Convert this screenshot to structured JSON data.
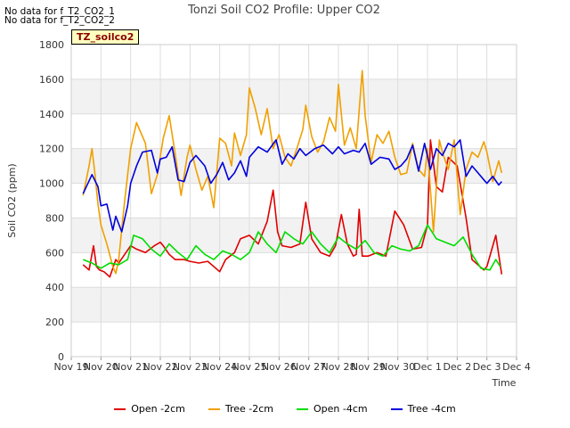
{
  "notes": [
    "No data for f_T2_CO2_1",
    "No data for f_T2_CO2_2"
  ],
  "station_tag": "TZ_soilco2",
  "chart_data": {
    "type": "line",
    "title": "Tonzi Soil CO2 Profile: Upper CO2",
    "xlabel": "Time",
    "ylabel": "Soil CO2 (ppm)",
    "ylim": [
      0,
      1800
    ],
    "xlim": [
      0,
      15
    ],
    "yticks": [
      0,
      200,
      400,
      600,
      800,
      1000,
      1200,
      1400,
      1600,
      1800
    ],
    "xticks": [
      0,
      1,
      2,
      3,
      4,
      5,
      6,
      7,
      8,
      9,
      10,
      11,
      12,
      13,
      14,
      15
    ],
    "xtick_labels": [
      "Nov 19",
      "Nov 20",
      "Nov 21",
      "Nov 22",
      "Nov 23",
      "Nov 24",
      "Nov 25",
      "Nov 26",
      "Nov 27",
      "Nov 28",
      "Nov 29",
      "Nov 30",
      "Dec 1",
      "Dec 2",
      "Dec 3",
      "Dec 4"
    ],
    "grid": true,
    "legend_position": "bottom",
    "series": [
      {
        "name": "Open -2cm",
        "color": "#e00000",
        "x": [
          0.4,
          0.6,
          0.75,
          0.85,
          0.95,
          1.1,
          1.3,
          1.5,
          1.6,
          1.8,
          2.0,
          2.2,
          2.5,
          2.8,
          3.0,
          3.1,
          3.3,
          3.5,
          3.8,
          4.0,
          4.3,
          4.6,
          5.0,
          5.2,
          5.5,
          5.7,
          6.0,
          6.3,
          6.6,
          6.8,
          6.95,
          7.1,
          7.4,
          7.7,
          7.9,
          8.1,
          8.4,
          8.7,
          8.9,
          9.1,
          9.3,
          9.5,
          9.6,
          9.7,
          9.8,
          10.0,
          10.3,
          10.6,
          10.9,
          11.2,
          11.5,
          11.8,
          12.0,
          12.1,
          12.3,
          12.5,
          12.7,
          13.0,
          13.3,
          13.5,
          13.9,
          14.0,
          14.3,
          14.5
        ],
        "y": [
          530,
          500,
          640,
          520,
          500,
          490,
          460,
          560,
          540,
          590,
          640,
          620,
          600,
          640,
          660,
          640,
          590,
          560,
          560,
          550,
          540,
          550,
          490,
          560,
          600,
          680,
          700,
          650,
          780,
          960,
          720,
          640,
          630,
          650,
          890,
          680,
          600,
          580,
          640,
          820,
          650,
          580,
          590,
          850,
          580,
          580,
          600,
          580,
          840,
          760,
          620,
          630,
          760,
          1250,
          980,
          950,
          1150,
          1100,
          800,
          560,
          500,
          520,
          700,
          475
        ]
      },
      {
        "name": "Tree -2cm",
        "color": "#f0a000",
        "x": [
          0.4,
          0.6,
          0.7,
          0.8,
          0.9,
          1.0,
          1.2,
          1.4,
          1.5,
          1.6,
          1.8,
          2.0,
          2.2,
          2.5,
          2.7,
          2.9,
          3.1,
          3.3,
          3.5,
          3.7,
          3.9,
          4.0,
          4.2,
          4.4,
          4.6,
          4.8,
          5.0,
          5.2,
          5.4,
          5.5,
          5.7,
          5.9,
          6.0,
          6.2,
          6.4,
          6.6,
          6.8,
          7.0,
          7.2,
          7.4,
          7.6,
          7.8,
          7.9,
          8.1,
          8.3,
          8.5,
          8.7,
          8.9,
          9.0,
          9.2,
          9.4,
          9.6,
          9.8,
          9.9,
          10.1,
          10.3,
          10.5,
          10.7,
          10.9,
          11.1,
          11.3,
          11.5,
          11.7,
          11.9,
          12.0,
          12.2,
          12.4,
          12.5,
          12.7,
          12.9,
          13.1,
          13.3,
          13.5,
          13.7,
          13.9,
          14.0,
          14.2,
          14.4,
          14.5
        ],
        "y": [
          930,
          1100,
          1200,
          1050,
          880,
          760,
          650,
          520,
          480,
          560,
          900,
          1200,
          1350,
          1230,
          940,
          1050,
          1260,
          1390,
          1170,
          930,
          1150,
          1220,
          1080,
          960,
          1040,
          860,
          1260,
          1230,
          1100,
          1290,
          1160,
          1280,
          1550,
          1430,
          1280,
          1430,
          1200,
          1280,
          1150,
          1100,
          1200,
          1310,
          1450,
          1270,
          1180,
          1240,
          1380,
          1300,
          1570,
          1220,
          1320,
          1200,
          1650,
          1390,
          1120,
          1280,
          1230,
          1300,
          1150,
          1050,
          1060,
          1230,
          1080,
          1040,
          1200,
          720,
          1250,
          1180,
          1080,
          1250,
          820,
          1080,
          1180,
          1150,
          1240,
          1180,
          1010,
          1130,
          1060
        ]
      },
      {
        "name": "Open -4cm",
        "color": "#00dd00",
        "x": [
          0.4,
          0.7,
          1.0,
          1.3,
          1.6,
          1.9,
          2.1,
          2.4,
          2.7,
          3.0,
          3.3,
          3.6,
          3.9,
          4.2,
          4.5,
          4.8,
          5.1,
          5.4,
          5.7,
          6.0,
          6.3,
          6.6,
          6.9,
          7.2,
          7.5,
          7.8,
          8.1,
          8.4,
          8.7,
          9.0,
          9.3,
          9.6,
          9.9,
          10.2,
          10.5,
          10.8,
          11.1,
          11.4,
          11.7,
          12.0,
          12.3,
          12.6,
          12.9,
          13.2,
          13.5,
          13.8,
          14.1,
          14.3,
          14.45
        ],
        "y": [
          560,
          540,
          510,
          540,
          530,
          560,
          700,
          680,
          620,
          580,
          650,
          600,
          560,
          640,
          590,
          560,
          610,
          590,
          560,
          600,
          720,
          650,
          600,
          720,
          680,
          650,
          720,
          650,
          600,
          690,
          650,
          620,
          670,
          600,
          580,
          640,
          620,
          610,
          640,
          760,
          680,
          660,
          640,
          690,
          590,
          510,
          500,
          560,
          520
        ]
      },
      {
        "name": "Tree -4cm",
        "color": "#0000dd",
        "x": [
          0.4,
          0.7,
          0.9,
          1.0,
          1.2,
          1.4,
          1.5,
          1.7,
          1.9,
          2.0,
          2.2,
          2.4,
          2.7,
          2.9,
          3.0,
          3.2,
          3.4,
          3.6,
          3.8,
          4.0,
          4.2,
          4.5,
          4.7,
          4.9,
          5.1,
          5.3,
          5.5,
          5.7,
          5.9,
          6.0,
          6.3,
          6.6,
          6.9,
          7.1,
          7.3,
          7.5,
          7.7,
          7.9,
          8.2,
          8.5,
          8.8,
          9.0,
          9.2,
          9.5,
          9.7,
          9.9,
          10.1,
          10.4,
          10.7,
          10.9,
          11.1,
          11.3,
          11.5,
          11.7,
          11.9,
          12.1,
          12.3,
          12.5,
          12.7,
          12.9,
          13.1,
          13.3,
          13.5,
          13.7,
          13.9,
          14.0,
          14.2,
          14.4,
          14.5
        ],
        "y": [
          940,
          1050,
          980,
          870,
          880,
          730,
          810,
          720,
          870,
          1000,
          1100,
          1180,
          1190,
          1060,
          1140,
          1150,
          1210,
          1020,
          1010,
          1120,
          1160,
          1100,
          1000,
          1050,
          1120,
          1020,
          1060,
          1130,
          1040,
          1150,
          1210,
          1180,
          1250,
          1110,
          1170,
          1140,
          1200,
          1160,
          1200,
          1220,
          1170,
          1210,
          1170,
          1190,
          1180,
          1230,
          1110,
          1150,
          1140,
          1080,
          1100,
          1140,
          1220,
          1070,
          1230,
          1080,
          1200,
          1160,
          1230,
          1210,
          1250,
          1040,
          1100,
          1060,
          1020,
          1000,
          1040,
          990,
          1010
        ]
      }
    ]
  }
}
